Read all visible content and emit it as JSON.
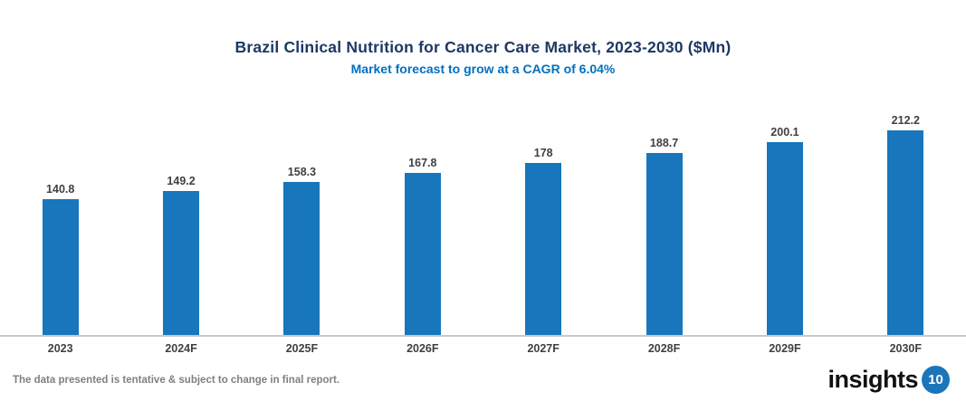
{
  "header": {
    "title": "Brazil Clinical Nutrition for Cancer Care Market, 2023-2030 ($Mn)",
    "subtitle": "Market forecast to grow at a CAGR of 6.04%"
  },
  "chart_data": {
    "type": "bar",
    "title": "Brazil Clinical Nutrition for Cancer Care Market, 2023-2030 ($Mn)",
    "subtitle": "Market forecast to grow at a CAGR of 6.04%",
    "categories": [
      "2023",
      "2024F",
      "2025F",
      "2026F",
      "2027F",
      "2028F",
      "2029F",
      "2030F"
    ],
    "values": [
      140.8,
      149.2,
      158.3,
      167.8,
      178,
      188.7,
      200.1,
      212.2
    ],
    "value_labels": [
      "140.8",
      "149.2",
      "158.3",
      "167.8",
      "178",
      "188.7",
      "200.1",
      "212.2"
    ],
    "xlabel": "",
    "ylabel": "",
    "ylim": [
      0,
      220
    ],
    "grid": false,
    "legend": false,
    "y_axis_visible": false,
    "bar_color": "#1776BC"
  },
  "footer": {
    "disclaimer": "The data presented is tentative & subject to change in final report.",
    "logo_text": "insights",
    "logo_badge": "10"
  },
  "colors": {
    "title_color": "#1F3864",
    "subtitle_color": "#0070C0",
    "bar_color": "#1776BC",
    "label_color": "#404040",
    "axis_line_color": "#C9C9C9",
    "footer_text_color": "#808080",
    "logo_badge_bg": "#1B75BB"
  }
}
